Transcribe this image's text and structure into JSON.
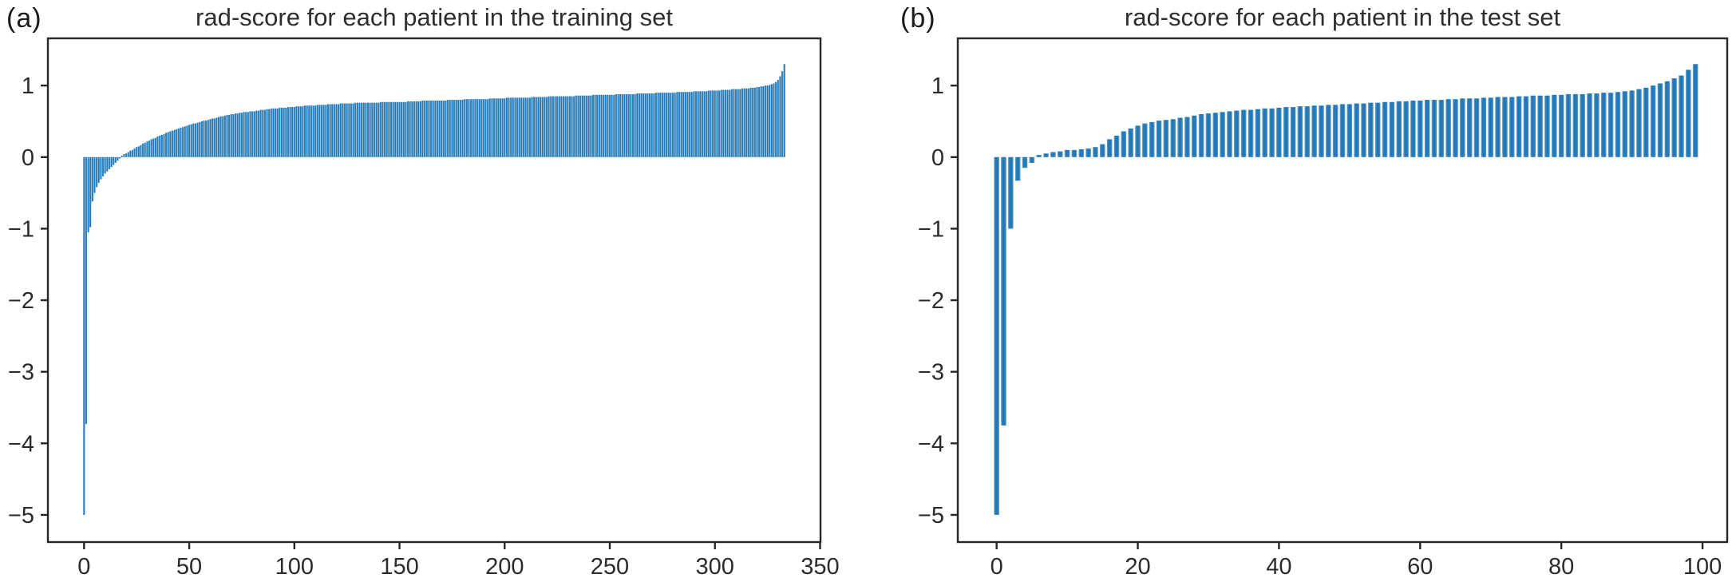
{
  "figure": {
    "background": "#ffffff",
    "bar_color": "#2478b5",
    "bar_edge_color": "#64a2cd",
    "axis_color": "#262626",
    "tick_text_color": "#2b2b2b",
    "title_text_color": "#2e2e2e"
  },
  "panels": [
    {
      "label": "(a)"
    },
    {
      "label": "(b)"
    }
  ],
  "chart_data": [
    {
      "type": "bar",
      "title": "rad-score for each patient in the training set",
      "xlabel": "",
      "ylabel": "",
      "legend": "none",
      "grid": false,
      "x_ticks": [
        0,
        50,
        100,
        150,
        200,
        250,
        300,
        350
      ],
      "y_ticks": [
        1,
        0,
        -1,
        -2,
        -3,
        -4,
        -5
      ],
      "xlim": [
        -17.2,
        350.2
      ],
      "ylim": [
        -5.38,
        1.66
      ],
      "n_patients": 334,
      "x_description": "patient index sorted by ascending rad-score",
      "values": [
        -5.0,
        -3.73,
        -1.05,
        -0.98,
        -0.62,
        -0.5,
        -0.42,
        -0.36,
        -0.31,
        -0.27,
        -0.23,
        -0.2,
        -0.17,
        -0.14,
        -0.11,
        -0.08,
        -0.05,
        -0.02,
        0.02,
        0.04,
        0.05,
        0.07,
        0.09,
        0.1,
        0.12,
        0.14,
        0.15,
        0.17,
        0.19,
        0.2,
        0.22,
        0.23,
        0.25,
        0.26,
        0.27,
        0.29,
        0.3,
        0.31,
        0.32,
        0.34,
        0.35,
        0.36,
        0.37,
        0.38,
        0.39,
        0.4,
        0.41,
        0.42,
        0.43,
        0.44,
        0.45,
        0.46,
        0.47,
        0.47,
        0.48,
        0.49,
        0.5,
        0.51,
        0.51,
        0.52,
        0.53,
        0.54,
        0.54,
        0.55,
        0.56,
        0.57,
        0.57,
        0.58,
        0.59,
        0.59,
        0.6,
        0.6,
        0.61,
        0.61,
        0.62,
        0.62,
        0.63,
        0.63,
        0.63,
        0.64,
        0.64,
        0.64,
        0.65,
        0.65,
        0.66,
        0.66,
        0.66,
        0.67,
        0.67,
        0.68,
        0.68,
        0.68,
        0.68,
        0.69,
        0.69,
        0.69,
        0.69,
        0.7,
        0.7,
        0.7,
        0.7,
        0.71,
        0.71,
        0.71,
        0.71,
        0.72,
        0.72,
        0.72,
        0.72,
        0.72,
        0.72,
        0.73,
        0.73,
        0.73,
        0.73,
        0.73,
        0.74,
        0.74,
        0.74,
        0.74,
        0.74,
        0.74,
        0.75,
        0.75,
        0.75,
        0.75,
        0.75,
        0.75,
        0.75,
        0.76,
        0.76,
        0.76,
        0.76,
        0.76,
        0.76,
        0.76,
        0.76,
        0.76,
        0.76,
        0.76,
        0.76,
        0.77,
        0.77,
        0.77,
        0.77,
        0.77,
        0.77,
        0.77,
        0.77,
        0.77,
        0.77,
        0.77,
        0.77,
        0.77,
        0.78,
        0.78,
        0.78,
        0.78,
        0.78,
        0.78,
        0.78,
        0.79,
        0.79,
        0.79,
        0.79,
        0.79,
        0.79,
        0.79,
        0.79,
        0.79,
        0.79,
        0.79,
        0.79,
        0.8,
        0.8,
        0.8,
        0.8,
        0.8,
        0.8,
        0.8,
        0.8,
        0.81,
        0.81,
        0.81,
        0.81,
        0.81,
        0.81,
        0.81,
        0.81,
        0.81,
        0.81,
        0.81,
        0.81,
        0.82,
        0.82,
        0.82,
        0.82,
        0.82,
        0.82,
        0.82,
        0.82,
        0.83,
        0.83,
        0.83,
        0.83,
        0.83,
        0.83,
        0.83,
        0.83,
        0.83,
        0.83,
        0.83,
        0.83,
        0.84,
        0.84,
        0.84,
        0.84,
        0.84,
        0.84,
        0.84,
        0.84,
        0.85,
        0.85,
        0.85,
        0.85,
        0.85,
        0.85,
        0.85,
        0.85,
        0.85,
        0.85,
        0.85,
        0.85,
        0.85,
        0.86,
        0.86,
        0.86,
        0.86,
        0.86,
        0.86,
        0.86,
        0.86,
        0.87,
        0.87,
        0.87,
        0.87,
        0.87,
        0.87,
        0.87,
        0.87,
        0.87,
        0.87,
        0.87,
        0.88,
        0.88,
        0.88,
        0.88,
        0.88,
        0.88,
        0.88,
        0.88,
        0.88,
        0.88,
        0.89,
        0.89,
        0.89,
        0.89,
        0.89,
        0.89,
        0.89,
        0.89,
        0.89,
        0.9,
        0.9,
        0.9,
        0.9,
        0.9,
        0.9,
        0.9,
        0.9,
        0.9,
        0.9,
        0.91,
        0.91,
        0.91,
        0.91,
        0.91,
        0.91,
        0.91,
        0.91,
        0.92,
        0.92,
        0.92,
        0.92,
        0.92,
        0.92,
        0.92,
        0.93,
        0.93,
        0.93,
        0.93,
        0.93,
        0.93,
        0.94,
        0.94,
        0.94,
        0.94,
        0.94,
        0.95,
        0.95,
        0.95,
        0.95,
        0.95,
        0.96,
        0.96,
        0.96,
        0.96,
        0.97,
        0.97,
        0.97,
        0.98,
        0.98,
        0.99,
        0.99,
        1.0,
        1.0,
        1.01,
        1.02,
        1.03,
        1.05,
        1.08,
        1.13,
        1.2,
        1.3
      ]
    },
    {
      "type": "bar",
      "title": "rad-score for each patient in the test set",
      "xlabel": "",
      "ylabel": "",
      "legend": "none",
      "grid": false,
      "x_ticks": [
        0,
        20,
        40,
        60,
        80,
        100
      ],
      "y_ticks": [
        1,
        0,
        -1,
        -2,
        -3,
        -4,
        -5
      ],
      "xlim": [
        -5.5,
        103.5
      ],
      "ylim": [
        -5.38,
        1.66
      ],
      "n_patients": 100,
      "x_description": "patient index sorted by ascending rad-score",
      "values": [
        -5.0,
        -3.75,
        -1.0,
        -0.33,
        -0.15,
        -0.08,
        0.03,
        0.05,
        0.07,
        0.08,
        0.1,
        0.1,
        0.11,
        0.12,
        0.14,
        0.18,
        0.25,
        0.3,
        0.36,
        0.4,
        0.44,
        0.47,
        0.49,
        0.51,
        0.52,
        0.53,
        0.55,
        0.56,
        0.58,
        0.6,
        0.61,
        0.62,
        0.63,
        0.64,
        0.65,
        0.66,
        0.66,
        0.67,
        0.68,
        0.68,
        0.69,
        0.7,
        0.7,
        0.71,
        0.71,
        0.72,
        0.72,
        0.73,
        0.73,
        0.74,
        0.74,
        0.75,
        0.75,
        0.76,
        0.76,
        0.77,
        0.77,
        0.78,
        0.78,
        0.79,
        0.79,
        0.8,
        0.8,
        0.8,
        0.81,
        0.81,
        0.82,
        0.82,
        0.82,
        0.83,
        0.83,
        0.84,
        0.84,
        0.84,
        0.85,
        0.85,
        0.86,
        0.86,
        0.86,
        0.87,
        0.87,
        0.88,
        0.88,
        0.88,
        0.89,
        0.89,
        0.9,
        0.9,
        0.91,
        0.92,
        0.93,
        0.95,
        0.97,
        1.0,
        1.03,
        1.06,
        1.1,
        1.14,
        1.22,
        1.3
      ]
    }
  ]
}
